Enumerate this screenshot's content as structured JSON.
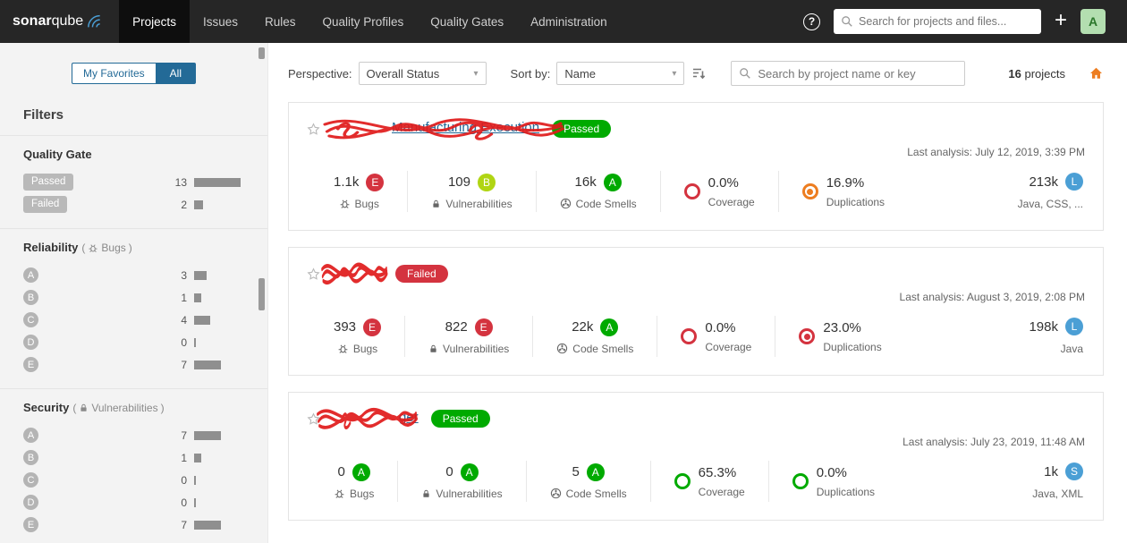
{
  "colors": {
    "ratings": {
      "A": "#00aa00",
      "B": "#b0d513",
      "C": "#eabe06",
      "D": "#ed7d20",
      "E": "#d4333f"
    },
    "size_badge": "#4b9fd5",
    "status": {
      "Passed": "#00aa00",
      "Failed": "#d4333f"
    },
    "accent": "#236a97",
    "home_icon": "#ed7d20"
  },
  "icons": {
    "help": "?",
    "plus": "+",
    "chevron": "▾"
  },
  "navbar": {
    "brand_bold": "sonar",
    "brand_light": "qube",
    "items": [
      {
        "label": "Projects"
      },
      {
        "label": "Issues"
      },
      {
        "label": "Rules"
      },
      {
        "label": "Quality Profiles"
      },
      {
        "label": "Quality Gates"
      },
      {
        "label": "Administration"
      }
    ],
    "search_placeholder": "Search for projects and files...",
    "avatar_initial": "A"
  },
  "sidebar": {
    "toggle": {
      "my_favorites": "My Favorites",
      "all": "All",
      "selected": "All"
    },
    "filters_title": "Filters",
    "paren_open": "(",
    "paren_close": ")",
    "quality_gate": {
      "title": "Quality Gate",
      "items": [
        {
          "label": "Passed",
          "count": "13",
          "bar": 52
        },
        {
          "label": "Failed",
          "count": "2",
          "bar": 10
        }
      ]
    },
    "reliability": {
      "title": "Reliability",
      "subtitle": "Bugs",
      "items": [
        {
          "rating": "A",
          "count": "3",
          "bar": 14
        },
        {
          "rating": "B",
          "count": "1",
          "bar": 8
        },
        {
          "rating": "C",
          "count": "4",
          "bar": 18
        },
        {
          "rating": "D",
          "count": "0",
          "bar": 2
        },
        {
          "rating": "E",
          "count": "7",
          "bar": 30
        }
      ]
    },
    "security": {
      "title": "Security",
      "subtitle": "Vulnerabilities",
      "items": [
        {
          "rating": "A",
          "count": "7",
          "bar": 30
        },
        {
          "rating": "B",
          "count": "1",
          "bar": 8
        },
        {
          "rating": "C",
          "count": "0",
          "bar": 2
        },
        {
          "rating": "D",
          "count": "0",
          "bar": 2
        },
        {
          "rating": "E",
          "count": "7",
          "bar": 30
        }
      ]
    }
  },
  "toolbar": {
    "perspective_label": "Perspective:",
    "perspective_value": "Overall Status",
    "sort_label": "Sort by:",
    "sort_value": "Name",
    "search_placeholder": "Search by project name or key",
    "projects_count_value": "16",
    "projects_count_label": "projects"
  },
  "metric_labels": {
    "bugs": "Bugs",
    "vulnerabilities": "Vulnerabilities",
    "code_smells": "Code Smells",
    "coverage": "Coverage",
    "duplications": "Duplications"
  },
  "projects": [
    {
      "name_visible": "Manufacturing Execution",
      "redacted": true,
      "status": "Passed",
      "last_analysis": "Last analysis: July 12, 2019, 3:39 PM",
      "metrics": {
        "bugs": {
          "value": "1.1k",
          "rating": "E"
        },
        "vulnerabilities": {
          "value": "109",
          "rating": "B"
        },
        "code_smells": {
          "value": "16k",
          "rating": "A"
        },
        "coverage": {
          "value": "0.0%",
          "color": "#d4333f",
          "dot": false
        },
        "duplications": {
          "value": "16.9%",
          "color": "#ed7d20",
          "dot": true
        },
        "size": {
          "value": "213k",
          "badge": "L",
          "languages": "Java, CSS, ..."
        }
      }
    },
    {
      "name_visible": "",
      "redacted": true,
      "status": "Failed",
      "last_analysis": "Last analysis: August 3, 2019, 2:08 PM",
      "metrics": {
        "bugs": {
          "value": "393",
          "rating": "E"
        },
        "vulnerabilities": {
          "value": "822",
          "rating": "E"
        },
        "code_smells": {
          "value": "22k",
          "rating": "A"
        },
        "coverage": {
          "value": "0.0%",
          "color": "#d4333f",
          "dot": false
        },
        "duplications": {
          "value": "23.0%",
          "color": "#d4333f",
          "dot": true
        },
        "size": {
          "value": "198k",
          "badge": "L",
          "languages": "Java"
        }
      }
    },
    {
      "name_visible": "ger",
      "redacted": true,
      "status": "Passed",
      "last_analysis": "Last analysis: July 23, 2019, 11:48 AM",
      "metrics": {
        "bugs": {
          "value": "0",
          "rating": "A"
        },
        "vulnerabilities": {
          "value": "0",
          "rating": "A"
        },
        "code_smells": {
          "value": "5",
          "rating": "A"
        },
        "coverage": {
          "value": "65.3%",
          "color": "#00aa00",
          "dot": false
        },
        "duplications": {
          "value": "0.0%",
          "color": "#00aa00",
          "dot": false
        },
        "size": {
          "value": "1k",
          "badge": "S",
          "languages": "Java, XML"
        }
      }
    }
  ]
}
